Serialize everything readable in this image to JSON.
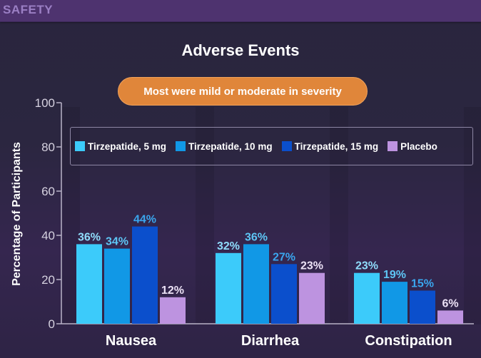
{
  "header": {
    "section_label": "SAFETY"
  },
  "title": "Adverse Events",
  "callout": "Most were mild or moderate in severity",
  "colors": {
    "header_bg": "#4e336f",
    "callout_bg": "#e0863a",
    "tirzepatide_5mg": "#3ccbfa",
    "tirzepatide_10mg": "#1198e6",
    "tirzepatide_15mg": "#0b4fcc",
    "placebo": "#bd93e0"
  },
  "chart_data": {
    "type": "bar",
    "title": "Adverse Events",
    "xlabel": "",
    "ylabel": "Percentage of Participants",
    "ylim": [
      0,
      100
    ],
    "yticks": [
      0,
      20,
      40,
      60,
      80,
      100
    ],
    "categories": [
      "Nausea",
      "Diarrhea",
      "Constipation"
    ],
    "series": [
      {
        "name": "Tirzepatide, 5 mg",
        "values": [
          36,
          32,
          23
        ],
        "labels": [
          "36%",
          "32%",
          "23%"
        ],
        "color": "#3ccbfa",
        "label_color": "#8fdcfb"
      },
      {
        "name": "Tirzepatide, 10 mg",
        "values": [
          34,
          36,
          19
        ],
        "labels": [
          "34%",
          "36%",
          "19%"
        ],
        "color": "#1198e6",
        "label_color": "#5ec6f5"
      },
      {
        "name": "Tirzepatide, 15 mg",
        "values": [
          44,
          27,
          15
        ],
        "labels": [
          "44%",
          "27%",
          "15%"
        ],
        "color": "#0b4fcc",
        "label_color": "#3aa6ee"
      },
      {
        "name": "Placebo",
        "values": [
          12,
          23,
          6
        ],
        "labels": [
          "12%",
          "23%",
          "6%"
        ],
        "color": "#bd93e0",
        "label_color": "#ece2f6"
      }
    ],
    "legend_position": "top",
    "grid": false
  }
}
